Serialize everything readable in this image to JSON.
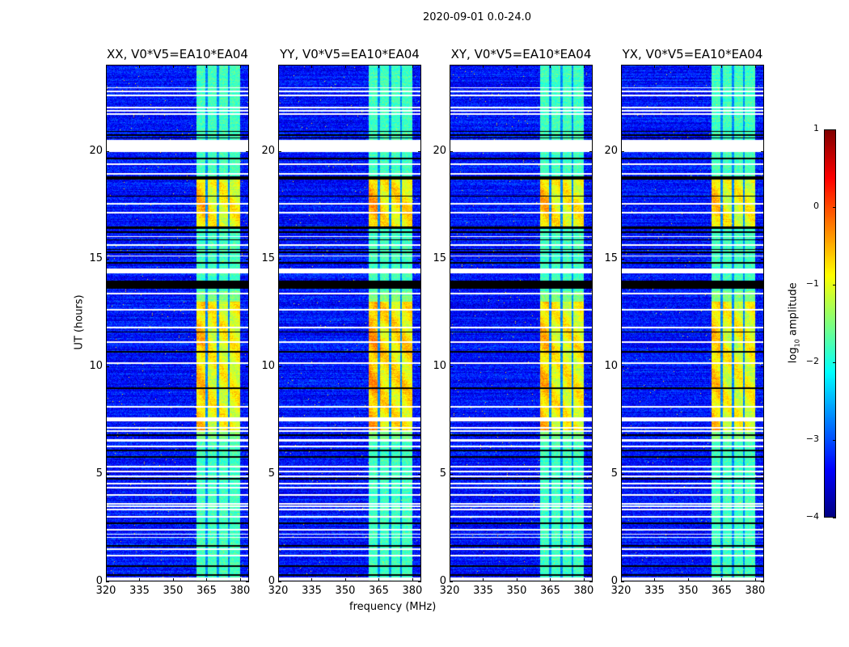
{
  "chart_data": {
    "type": "heatmap",
    "title": "2020-09-01 0.0-24.0",
    "xlabel": "frequency (MHz)",
    "ylabel": "UT (hours)",
    "xlim": [
      320,
      384
    ],
    "ylim": [
      0,
      24
    ],
    "xticks": [
      "320",
      "335",
      "350",
      "365",
      "380"
    ],
    "yticks": [
      "0",
      "5",
      "10",
      "15",
      "20"
    ],
    "xtick_values": [
      320,
      335,
      350,
      365,
      380
    ],
    "ytick_values": [
      0,
      5,
      10,
      15,
      20
    ],
    "panels": [
      {
        "title": "XX, V0*V5=EA10*EA04",
        "hot_level": 0.8
      },
      {
        "title": "YY, V0*V5=EA10*EA04",
        "hot_level": 1.0
      },
      {
        "title": "XY, V0*V5=EA10*EA04",
        "hot_level": 0.85
      },
      {
        "title": "YX, V0*V5=EA10*EA04",
        "hot_level": 0.75
      }
    ],
    "background_log_amplitude": -3.3,
    "band_mhz": [
      360.5,
      380
    ],
    "band_log_amplitude": -1.5,
    "band_dips_mhz": [
      365,
      370,
      375
    ],
    "hot_intervals_hours": [
      [
        7.0,
        13.0
      ],
      [
        16.5,
        18.8
      ]
    ],
    "flagged_white_hours": [
      [
        22.9,
        22.96
      ],
      [
        22.72,
        22.78
      ],
      [
        22.55,
        22.61
      ],
      [
        21.98,
        22.04
      ],
      [
        21.83,
        21.89
      ],
      [
        21.68,
        21.74
      ],
      [
        19.95,
        20.5
      ],
      [
        19.35,
        19.41
      ],
      [
        18.91,
        18.97
      ],
      [
        17.52,
        17.58
      ],
      [
        17.1,
        17.16
      ],
      [
        16.0,
        16.05
      ],
      [
        15.6,
        15.65
      ],
      [
        15.1,
        15.15
      ],
      [
        14.3,
        14.53
      ],
      [
        13.35,
        13.41
      ],
      [
        12.58,
        12.64
      ],
      [
        11.77,
        11.83
      ],
      [
        11.08,
        11.14
      ],
      [
        10.12,
        10.18
      ],
      [
        8.08,
        8.14
      ],
      [
        7.43,
        7.62
      ],
      [
        7.11,
        7.16
      ],
      [
        6.96,
        7.01
      ],
      [
        6.5,
        6.62
      ],
      [
        6.25,
        6.3
      ],
      [
        5.31,
        5.36
      ],
      [
        5.08,
        5.13
      ],
      [
        4.86,
        4.91
      ],
      [
        4.52,
        4.57
      ],
      [
        4.33,
        4.38
      ],
      [
        4.0,
        4.05
      ],
      [
        3.58,
        3.63
      ],
      [
        3.47,
        3.52
      ],
      [
        3.32,
        3.37
      ],
      [
        2.95,
        3.05
      ],
      [
        2.38,
        2.43
      ],
      [
        2.16,
        2.21
      ],
      [
        2.01,
        2.06
      ],
      [
        1.48,
        1.53
      ],
      [
        1.18,
        1.23
      ],
      [
        0.04,
        0.2
      ]
    ],
    "zero_black_hours": [
      [
        20.88,
        20.93
      ],
      [
        20.71,
        20.76
      ],
      [
        20.58,
        20.63
      ],
      [
        19.62,
        19.67
      ],
      [
        18.66,
        18.8
      ],
      [
        17.88,
        17.93
      ],
      [
        16.37,
        16.48
      ],
      [
        16.2,
        16.25
      ],
      [
        15.85,
        15.9
      ],
      [
        15.4,
        15.45
      ],
      [
        15.25,
        15.32
      ],
      [
        14.75,
        14.85
      ],
      [
        13.6,
        13.97
      ],
      [
        11.55,
        11.6
      ],
      [
        10.64,
        10.69
      ],
      [
        8.95,
        9.0
      ],
      [
        6.75,
        6.85
      ],
      [
        6.06,
        6.11
      ],
      [
        5.76,
        5.81
      ],
      [
        4.75,
        4.8
      ],
      [
        2.68,
        2.73
      ],
      [
        1.63,
        1.68
      ],
      [
        0.69,
        0.74
      ],
      [
        0.28,
        0.33
      ]
    ],
    "colorbar": {
      "label_main": "log",
      "label_sub": "10",
      "label_rest": " amplitude",
      "range": [
        -4,
        1
      ],
      "ticks": [
        "1",
        "0",
        "−1",
        "−2",
        "−3",
        "−4"
      ],
      "tick_values": [
        1,
        0,
        -1,
        -2,
        -3,
        -4
      ],
      "colormap": "jet"
    }
  }
}
